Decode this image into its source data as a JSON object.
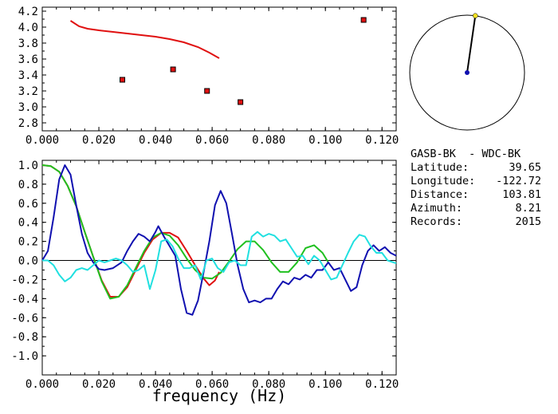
{
  "info": {
    "title": "GASB-BK  - WDC-BK",
    "rows": [
      {
        "label": "Latitude:",
        "value": "39.65"
      },
      {
        "label": "Longitude:",
        "value": "-122.72"
      },
      {
        "label": "Distance:",
        "value": "103.81"
      },
      {
        "label": "Azimuth:",
        "value": "8.21"
      },
      {
        "label": "Records:",
        "value": "2015"
      }
    ]
  },
  "colors": {
    "red": "#e01010",
    "blue": "#1010b0",
    "green": "#20c020",
    "cyan": "#20e0e0",
    "marker": "#e01010",
    "station": "#1010b0",
    "azimuth_dot": "#f0e020"
  },
  "chart_data": [
    {
      "type": "scatter",
      "xlim": [
        0.0,
        0.125
      ],
      "ylim": [
        2.7,
        4.25
      ],
      "x_ticks": [
        "0.000",
        "0.020",
        "0.040",
        "0.060",
        "0.080",
        "0.100",
        "0.120"
      ],
      "y_ticks": [
        "2.8",
        "3.0",
        "3.2",
        "3.4",
        "3.6",
        "3.8",
        "4.0",
        "4.2"
      ],
      "points": [
        {
          "x": 0.0283,
          "y": 3.34
        },
        {
          "x": 0.0462,
          "y": 3.47
        },
        {
          "x": 0.0582,
          "y": 3.2
        },
        {
          "x": 0.07,
          "y": 3.06
        },
        {
          "x": 0.1135,
          "y": 4.09
        }
      ],
      "curve": [
        [
          0.01,
          4.08
        ],
        [
          0.013,
          4.01
        ],
        [
          0.016,
          3.98
        ],
        [
          0.02,
          3.96
        ],
        [
          0.025,
          3.94
        ],
        [
          0.03,
          3.92
        ],
        [
          0.035,
          3.9
        ],
        [
          0.04,
          3.88
        ],
        [
          0.045,
          3.85
        ],
        [
          0.05,
          3.81
        ],
        [
          0.055,
          3.75
        ],
        [
          0.059,
          3.68
        ],
        [
          0.0625,
          3.61
        ]
      ]
    },
    {
      "type": "line",
      "xlim": [
        0.0,
        0.125
      ],
      "ylim": [
        -1.2,
        1.05
      ],
      "xlabel": "frequency (Hz)",
      "x_ticks": [
        "0.000",
        "0.020",
        "0.040",
        "0.060",
        "0.080",
        "0.100",
        "0.120"
      ],
      "y_ticks": [
        "1.0",
        "0.8",
        "0.6",
        "0.4",
        "0.2",
        "0.0",
        "-0.2",
        "-0.4",
        "-0.6",
        "-0.8",
        "-1.0"
      ],
      "series": [
        {
          "color_key": "red",
          "points": [
            [
              0.0,
              1.0
            ],
            [
              0.003,
              0.99
            ],
            [
              0.006,
              0.93
            ],
            [
              0.009,
              0.78
            ],
            [
              0.012,
              0.57
            ],
            [
              0.015,
              0.3
            ],
            [
              0.018,
              0.04
            ],
            [
              0.021,
              -0.21
            ],
            [
              0.024,
              -0.38
            ],
            [
              0.027,
              -0.38
            ],
            [
              0.03,
              -0.28
            ],
            [
              0.033,
              -0.1
            ],
            [
              0.036,
              0.08
            ],
            [
              0.039,
              0.22
            ],
            [
              0.042,
              0.29
            ],
            [
              0.045,
              0.29
            ],
            [
              0.048,
              0.24
            ],
            [
              0.051,
              0.1
            ],
            [
              0.054,
              -0.05
            ],
            [
              0.057,
              -0.19
            ],
            [
              0.059,
              -0.26
            ],
            [
              0.061,
              -0.21
            ],
            [
              0.0625,
              -0.12
            ]
          ]
        },
        {
          "color_key": "green",
          "points": [
            [
              0.0,
              1.0
            ],
            [
              0.003,
              0.99
            ],
            [
              0.006,
              0.93
            ],
            [
              0.009,
              0.78
            ],
            [
              0.012,
              0.57
            ],
            [
              0.015,
              0.3
            ],
            [
              0.018,
              0.04
            ],
            [
              0.021,
              -0.22
            ],
            [
              0.024,
              -0.4
            ],
            [
              0.027,
              -0.38
            ],
            [
              0.03,
              -0.26
            ],
            [
              0.033,
              -0.08
            ],
            [
              0.036,
              0.1
            ],
            [
              0.039,
              0.24
            ],
            [
              0.042,
              0.29
            ],
            [
              0.045,
              0.26
            ],
            [
              0.048,
              0.16
            ],
            [
              0.051,
              0.02
            ],
            [
              0.054,
              -0.1
            ],
            [
              0.057,
              -0.18
            ],
            [
              0.06,
              -0.19
            ],
            [
              0.063,
              -0.13
            ],
            [
              0.066,
              -0.01
            ],
            [
              0.069,
              0.12
            ],
            [
              0.072,
              0.2
            ],
            [
              0.075,
              0.2
            ],
            [
              0.078,
              0.11
            ],
            [
              0.081,
              -0.02
            ],
            [
              0.084,
              -0.12
            ],
            [
              0.087,
              -0.12
            ],
            [
              0.09,
              -0.02
            ],
            [
              0.093,
              0.13
            ],
            [
              0.096,
              0.16
            ],
            [
              0.099,
              0.08
            ],
            [
              0.101,
              -0.02
            ]
          ]
        },
        {
          "color_key": "blue",
          "points": [
            [
              0.0,
              0.0
            ],
            [
              0.002,
              0.1
            ],
            [
              0.004,
              0.45
            ],
            [
              0.006,
              0.85
            ],
            [
              0.008,
              1.0
            ],
            [
              0.01,
              0.9
            ],
            [
              0.012,
              0.58
            ],
            [
              0.014,
              0.28
            ],
            [
              0.016,
              0.08
            ],
            [
              0.018,
              -0.02
            ],
            [
              0.02,
              -0.09
            ],
            [
              0.022,
              -0.1
            ],
            [
              0.025,
              -0.08
            ],
            [
              0.028,
              -0.02
            ],
            [
              0.03,
              0.1
            ],
            [
              0.032,
              0.2
            ],
            [
              0.034,
              0.28
            ],
            [
              0.036,
              0.25
            ],
            [
              0.038,
              0.2
            ],
            [
              0.04,
              0.3
            ],
            [
              0.041,
              0.36
            ],
            [
              0.043,
              0.25
            ],
            [
              0.045,
              0.15
            ],
            [
              0.047,
              0.05
            ],
            [
              0.049,
              -0.3
            ],
            [
              0.051,
              -0.55
            ],
            [
              0.053,
              -0.57
            ],
            [
              0.055,
              -0.42
            ],
            [
              0.057,
              -0.12
            ],
            [
              0.059,
              0.2
            ],
            [
              0.061,
              0.58
            ],
            [
              0.063,
              0.73
            ],
            [
              0.065,
              0.6
            ],
            [
              0.067,
              0.28
            ],
            [
              0.069,
              -0.05
            ],
            [
              0.071,
              -0.3
            ],
            [
              0.073,
              -0.44
            ],
            [
              0.075,
              -0.42
            ],
            [
              0.077,
              -0.44
            ],
            [
              0.079,
              -0.4
            ],
            [
              0.081,
              -0.4
            ],
            [
              0.083,
              -0.3
            ],
            [
              0.085,
              -0.22
            ],
            [
              0.087,
              -0.25
            ],
            [
              0.089,
              -0.18
            ],
            [
              0.091,
              -0.2
            ],
            [
              0.093,
              -0.15
            ],
            [
              0.095,
              -0.18
            ],
            [
              0.097,
              -0.1
            ],
            [
              0.099,
              -0.1
            ],
            [
              0.101,
              -0.02
            ],
            [
              0.103,
              -0.1
            ],
            [
              0.105,
              -0.08
            ],
            [
              0.107,
              -0.2
            ],
            [
              0.109,
              -0.32
            ],
            [
              0.111,
              -0.28
            ],
            [
              0.113,
              -0.05
            ],
            [
              0.115,
              0.1
            ],
            [
              0.117,
              0.16
            ],
            [
              0.119,
              0.1
            ],
            [
              0.121,
              0.14
            ],
            [
              0.123,
              0.08
            ],
            [
              0.125,
              0.05
            ]
          ]
        },
        {
          "color_key": "cyan",
          "points": [
            [
              0.0,
              0.0
            ],
            [
              0.002,
              0.0
            ],
            [
              0.004,
              -0.05
            ],
            [
              0.006,
              -0.15
            ],
            [
              0.008,
              -0.22
            ],
            [
              0.01,
              -0.18
            ],
            [
              0.012,
              -0.1
            ],
            [
              0.014,
              -0.08
            ],
            [
              0.016,
              -0.1
            ],
            [
              0.018,
              -0.05
            ],
            [
              0.02,
              0.0
            ],
            [
              0.022,
              -0.02
            ],
            [
              0.024,
              0.0
            ],
            [
              0.026,
              0.02
            ],
            [
              0.028,
              0.0
            ],
            [
              0.03,
              -0.05
            ],
            [
              0.032,
              -0.12
            ],
            [
              0.034,
              -0.1
            ],
            [
              0.036,
              -0.05
            ],
            [
              0.038,
              -0.3
            ],
            [
              0.04,
              -0.1
            ],
            [
              0.042,
              0.2
            ],
            [
              0.044,
              0.22
            ],
            [
              0.046,
              0.15
            ],
            [
              0.048,
              0.02
            ],
            [
              0.05,
              -0.08
            ],
            [
              0.052,
              -0.08
            ],
            [
              0.054,
              -0.05
            ],
            [
              0.056,
              -0.2
            ],
            [
              0.058,
              0.0
            ],
            [
              0.06,
              0.02
            ],
            [
              0.062,
              -0.08
            ],
            [
              0.064,
              -0.12
            ],
            [
              0.066,
              -0.02
            ],
            [
              0.068,
              0.0
            ],
            [
              0.07,
              -0.05
            ],
            [
              0.072,
              -0.05
            ],
            [
              0.074,
              0.25
            ],
            [
              0.076,
              0.3
            ],
            [
              0.078,
              0.25
            ],
            [
              0.08,
              0.28
            ],
            [
              0.082,
              0.26
            ],
            [
              0.084,
              0.2
            ],
            [
              0.086,
              0.22
            ],
            [
              0.088,
              0.13
            ],
            [
              0.09,
              0.04
            ],
            [
              0.092,
              0.05
            ],
            [
              0.094,
              -0.04
            ],
            [
              0.096,
              0.05
            ],
            [
              0.098,
              0.0
            ],
            [
              0.1,
              -0.1
            ],
            [
              0.102,
              -0.2
            ],
            [
              0.104,
              -0.18
            ],
            [
              0.106,
              -0.05
            ],
            [
              0.108,
              0.08
            ],
            [
              0.11,
              0.2
            ],
            [
              0.112,
              0.27
            ],
            [
              0.114,
              0.25
            ],
            [
              0.116,
              0.15
            ],
            [
              0.118,
              0.08
            ],
            [
              0.12,
              0.08
            ],
            [
              0.122,
              0.0
            ],
            [
              0.124,
              -0.02
            ],
            [
              0.125,
              -0.03
            ]
          ]
        }
      ]
    },
    {
      "type": "azimuth",
      "azimuth_deg": 8.21
    }
  ]
}
